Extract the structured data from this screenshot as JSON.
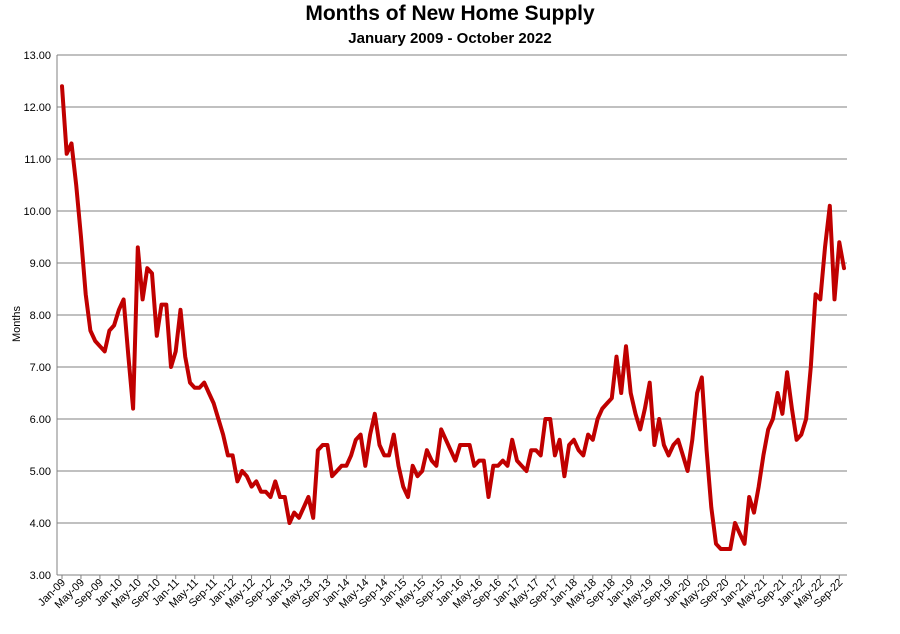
{
  "chart_data": {
    "type": "line",
    "title": "Months of New Home Supply",
    "subtitle": "January 2009 - October 2022",
    "ylabel": "Months",
    "xlabel": "",
    "ylim": [
      3,
      13
    ],
    "yticks": [
      "3.00",
      "4.00",
      "5.00",
      "6.00",
      "7.00",
      "8.00",
      "9.00",
      "10.00",
      "11.00",
      "12.00",
      "13.00"
    ],
    "xticks": [
      "Jan-09",
      "May-09",
      "Sep-09",
      "Jan-10",
      "May-10",
      "Sep-10",
      "Jan-11",
      "May-11",
      "Sep-11",
      "Jan-12",
      "May-12",
      "Sep-12",
      "Jan-13",
      "May-13",
      "Sep-13",
      "Jan-14",
      "May-14",
      "Sep-14",
      "Jan-15",
      "May-15",
      "Sep-15",
      "Jan-16",
      "May-16",
      "Sep-16",
      "Jan-17",
      "May-17",
      "Sep-17",
      "Jan-18",
      "May-18",
      "Sep-18",
      "Jan-19",
      "May-19",
      "Sep-19",
      "Jan-20",
      "May-20",
      "Sep-20",
      "Jan-21",
      "May-21",
      "Sep-21",
      "Jan-22",
      "May-22",
      "Sep-22"
    ],
    "grid": true,
    "line_color": "#c00000",
    "series": [
      {
        "name": "",
        "start": "Jan-09",
        "values": [
          12.4,
          11.1,
          11.3,
          10.5,
          9.5,
          8.4,
          7.7,
          7.5,
          7.4,
          7.3,
          7.7,
          7.8,
          8.1,
          8.3,
          7.2,
          6.2,
          9.3,
          8.3,
          8.9,
          8.8,
          7.6,
          8.2,
          8.2,
          7.0,
          7.3,
          8.1,
          7.2,
          6.7,
          6.6,
          6.6,
          6.7,
          6.5,
          6.3,
          6.0,
          5.7,
          5.3,
          5.3,
          4.8,
          5.0,
          4.9,
          4.7,
          4.8,
          4.6,
          4.6,
          4.5,
          4.8,
          4.5,
          4.5,
          4.0,
          4.2,
          4.1,
          4.3,
          4.5,
          4.1,
          5.4,
          5.5,
          5.5,
          4.9,
          5.0,
          5.1,
          5.1,
          5.3,
          5.6,
          5.7,
          5.1,
          5.7,
          6.1,
          5.5,
          5.3,
          5.3,
          5.7,
          5.1,
          4.7,
          4.5,
          5.1,
          4.9,
          5.0,
          5.4,
          5.2,
          5.1,
          5.8,
          5.6,
          5.4,
          5.2,
          5.5,
          5.5,
          5.5,
          5.1,
          5.2,
          5.2,
          4.5,
          5.1,
          5.1,
          5.2,
          5.1,
          5.6,
          5.2,
          5.1,
          5.0,
          5.4,
          5.4,
          5.3,
          6.0,
          6.0,
          5.3,
          5.6,
          4.9,
          5.5,
          5.6,
          5.4,
          5.3,
          5.7,
          5.6,
          6.0,
          6.2,
          6.3,
          6.4,
          7.2,
          6.5,
          7.4,
          6.5,
          6.1,
          5.8,
          6.2,
          6.7,
          5.5,
          6.0,
          5.5,
          5.3,
          5.5,
          5.6,
          5.3,
          5.0,
          5.6,
          6.5,
          6.8,
          5.4,
          4.3,
          3.6,
          3.5,
          3.5,
          3.5,
          4.0,
          3.8,
          3.6,
          4.5,
          4.2,
          4.7,
          5.3,
          5.8,
          6.0,
          6.5,
          6.1,
          6.9,
          6.2,
          5.6,
          5.7,
          6.0,
          7.0,
          8.4,
          8.3,
          9.3,
          10.1,
          8.3,
          9.4,
          8.9
        ]
      }
    ]
  }
}
